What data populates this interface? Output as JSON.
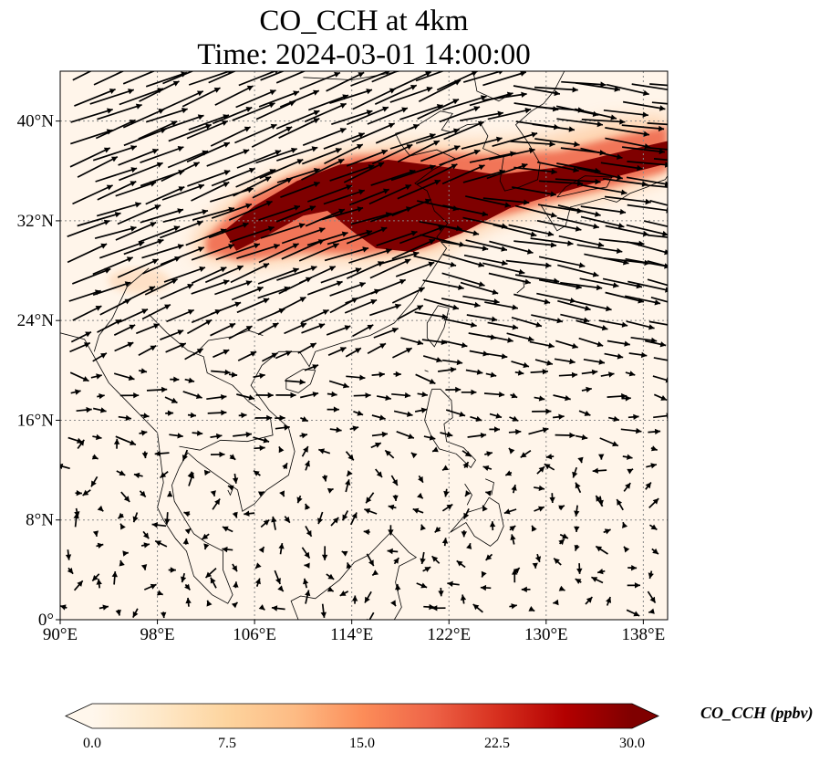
{
  "title_line_1": "CO_CCH at 4km",
  "title_line_2": "Time: 2024-03-01 14:00:00",
  "map": {
    "lon_range": [
      90,
      140
    ],
    "lat_range": [
      0,
      44
    ],
    "lon_ticks": [
      "90°E",
      "98°E",
      "106°E",
      "114°E",
      "122°E",
      "130°E",
      "138°E"
    ],
    "lat_ticks": [
      "0°",
      "8°N",
      "16°N",
      "24°N",
      "32°N",
      "40°N"
    ],
    "gridlines": true,
    "field": "CO_CCH",
    "high_concentration_band": "from about 103°E 30°N northeast across eastern China and Korea to Japan near 140°E 38°N",
    "wind_vectors": "strong westerly to northwesterly flow north of 20°N, weak and variable winds south of 16°N"
  },
  "colorbar": {
    "label": "CO_CCH (ppbv)",
    "min": 0.0,
    "max": 30.0,
    "extend": "both",
    "ticks": [
      "0.0",
      "7.5",
      "15.0",
      "22.5",
      "30.0"
    ],
    "colors": [
      "#fff7ec",
      "#fee8c8",
      "#fdd49e",
      "#fdbb84",
      "#fc8d59",
      "#ef6548",
      "#d7301f",
      "#b30000",
      "#7f0000"
    ]
  }
}
